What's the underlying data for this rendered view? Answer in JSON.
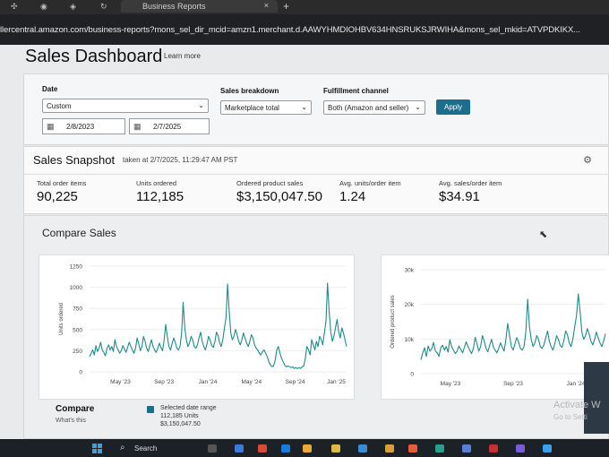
{
  "browser": {
    "tab_title": "Business Reports",
    "tab_close": "×",
    "new_tab": "+",
    "url": "llercentral.amazon.com/business-reports?mons_sel_dir_mcid=amzn1.merchant.d.AAWYHMDIOHBV634HNSRUKSJRWIHA&mons_sel_mkid=ATVPDKIKX..."
  },
  "page": {
    "title": "Sales Dashboard",
    "learn_more": "Learn more"
  },
  "filters": {
    "date_label": "Date",
    "date_value": "Custom",
    "start_date": "2/8/2023",
    "end_date": "2/7/2025",
    "breakdown_label": "Sales breakdown",
    "breakdown_value": "Marketplace total",
    "channel_label": "Fulfillment channel",
    "channel_value": "Both (Amazon and seller)",
    "apply_label": "Apply"
  },
  "snapshot": {
    "title": "Sales Snapshot",
    "taken_at": "taken at 2/7/2025, 11:29:47 AM PST",
    "metrics": [
      {
        "label": "Total order items",
        "value": "90,225"
      },
      {
        "label": "Units ordered",
        "value": "112,185"
      },
      {
        "label": "Ordered product sales",
        "value": "$3,150,047.50"
      },
      {
        "label": "Avg. units/order item",
        "value": "1.24"
      },
      {
        "label": "Avg. sales/order item",
        "value": "$34.91"
      }
    ]
  },
  "compare": {
    "title": "Compare Sales",
    "compare_label": "Compare",
    "whats_this": "What's this",
    "legend_title": "Selected date range",
    "legend_units": "112,185 Units",
    "legend_sales": "$3,150,047.50"
  },
  "watermark": {
    "line1": "Activate W",
    "line2": "Go to Setti"
  },
  "taskbar": {
    "search": "Search"
  },
  "colors": {
    "series": "#1f8a8a",
    "apply": "#1b6f8c"
  },
  "chart_data": [
    {
      "type": "line",
      "ylabel": "Units ordered",
      "ylim": [
        0,
        1250
      ],
      "y_ticks": [
        "0",
        "250",
        "500",
        "750",
        "1000",
        "1250"
      ],
      "x_ticks": [
        "May '23",
        "Sep '23",
        "Jan '24",
        "May '24",
        "Sep '24",
        "Jan '25"
      ],
      "x_start": "2023-02-08",
      "x_end": "2025-02-07",
      "series": [
        {
          "values": [
            180,
            220,
            260,
            200,
            310,
            240,
            280,
            350,
            260,
            230,
            190,
            280,
            320,
            260,
            300,
            240,
            380,
            300,
            260,
            220,
            250,
            310,
            270,
            230,
            290,
            350,
            300,
            260,
            220,
            280,
            400,
            330,
            250,
            300,
            420,
            360,
            280,
            240,
            310,
            380,
            300,
            260,
            230,
            280,
            340,
            290,
            250,
            380,
            560,
            420,
            300,
            260,
            330,
            400,
            350,
            280,
            260,
            300,
            460,
            820,
            520,
            380,
            300,
            340,
            420,
            380,
            300,
            280,
            320,
            400,
            470,
            360,
            300,
            260,
            330,
            420,
            380,
            310,
            290,
            360,
            470,
            430,
            340,
            300,
            380,
            520,
            640,
            1040,
            720,
            460,
            380,
            420,
            500,
            440,
            360,
            320,
            380,
            460,
            400,
            340,
            300,
            360,
            440,
            400,
            320,
            280,
            260,
            220,
            200,
            240,
            260,
            220,
            180,
            120,
            80,
            60,
            70,
            140,
            260,
            300,
            220,
            160,
            120,
            80,
            60,
            70,
            60,
            50,
            60,
            40,
            50,
            40,
            50,
            40,
            60,
            70,
            160,
            300,
            260,
            200,
            380,
            320,
            260,
            360,
            300,
            420,
            380,
            320,
            460,
            600,
            1050,
            720,
            480,
            360,
            420,
            520,
            620,
            480,
            400,
            520,
            460,
            380,
            300
          ]
        }
      ]
    },
    {
      "type": "line",
      "ylabel": "Ordered product sales",
      "ylim": [
        0,
        30000
      ],
      "y_ticks": [
        "0",
        "10k",
        "20k",
        "30k"
      ],
      "x_ticks": [
        "May '23",
        "Sep '23",
        "Jan '24"
      ],
      "x_start": "2023-02-08",
      "x_end": "2024-02-01",
      "series": [
        {
          "values": [
            4000,
            6000,
            7500,
            5000,
            8000,
            6500,
            7200,
            9000,
            6500,
            6000,
            5000,
            7500,
            8200,
            6800,
            7800,
            6200,
            9800,
            7800,
            6800,
            5800,
            6500,
            8000,
            7000,
            6000,
            7500,
            9200,
            7800,
            6800,
            5800,
            7300,
            10500,
            8600,
            6500,
            7800,
            11000,
            9400,
            7300,
            6300,
            8100,
            9900,
            7800,
            6800,
            6000,
            7300,
            8900,
            7600,
            6500,
            9900,
            14500,
            11000,
            7800,
            6800,
            8600,
            10400,
            9100,
            7300,
            6800,
            7800,
            12000,
            21500,
            13500,
            9900,
            7800,
            8900,
            11000,
            9900,
            7800,
            7300,
            8300,
            10400,
            12300,
            9400,
            7800,
            6800,
            8600,
            11000,
            9900,
            8100,
            7600,
            9400,
            12300,
            11200,
            8900,
            7800,
            9900,
            13500,
            16700,
            23000,
            18000,
            12000,
            9900,
            11000,
            13000,
            11500,
            9400,
            8300,
            9900,
            12000,
            10400,
            8900,
            7800,
            9400,
            11500
          ]
        }
      ]
    }
  ]
}
